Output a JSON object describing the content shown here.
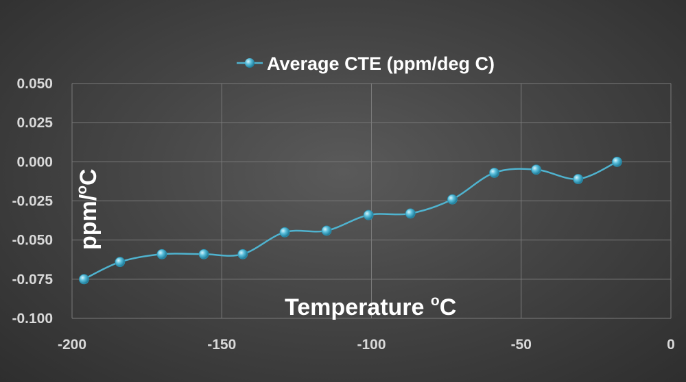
{
  "chart_data": {
    "type": "line",
    "smooth": true,
    "series": [
      {
        "name": "Average CTE (ppm/deg C)",
        "color": "#4fb3cf",
        "points": [
          [
            -196,
            -0.075
          ],
          [
            -184,
            -0.064
          ],
          [
            -170,
            -0.059
          ],
          [
            -156,
            -0.059
          ],
          [
            -143,
            -0.059
          ],
          [
            -129,
            -0.045
          ],
          [
            -115,
            -0.044
          ],
          [
            -101,
            -0.034
          ],
          [
            -87,
            -0.033
          ],
          [
            -73,
            -0.024
          ],
          [
            -59,
            -0.007
          ],
          [
            -45,
            -0.005
          ],
          [
            -31,
            -0.011
          ],
          [
            -18,
            0.0
          ]
        ]
      }
    ],
    "legend": {
      "label": "Average CTE (ppm/deg C)",
      "position": "top"
    },
    "xlabel": {
      "main": "Temperature ",
      "sup": "o",
      "tail": "C"
    },
    "ylabel": {
      "main": "ppm/",
      "sup": "o",
      "tail": "C"
    },
    "xlim": [
      -200,
      0
    ],
    "ylim": [
      -0.1,
      0.05
    ],
    "xticks": [
      -200,
      -150,
      -100,
      -50,
      0
    ],
    "xtick_labels": [
      "-200",
      "-150",
      "-100",
      "-50",
      "0"
    ],
    "yticks": [
      0.05,
      0.025,
      0.0,
      -0.025,
      -0.05,
      -0.075,
      -0.1
    ],
    "ytick_labels": [
      "0.050",
      "0.025",
      "0.000",
      "-0.025",
      "-0.050",
      "-0.075",
      "-0.100"
    ],
    "grid": true
  }
}
